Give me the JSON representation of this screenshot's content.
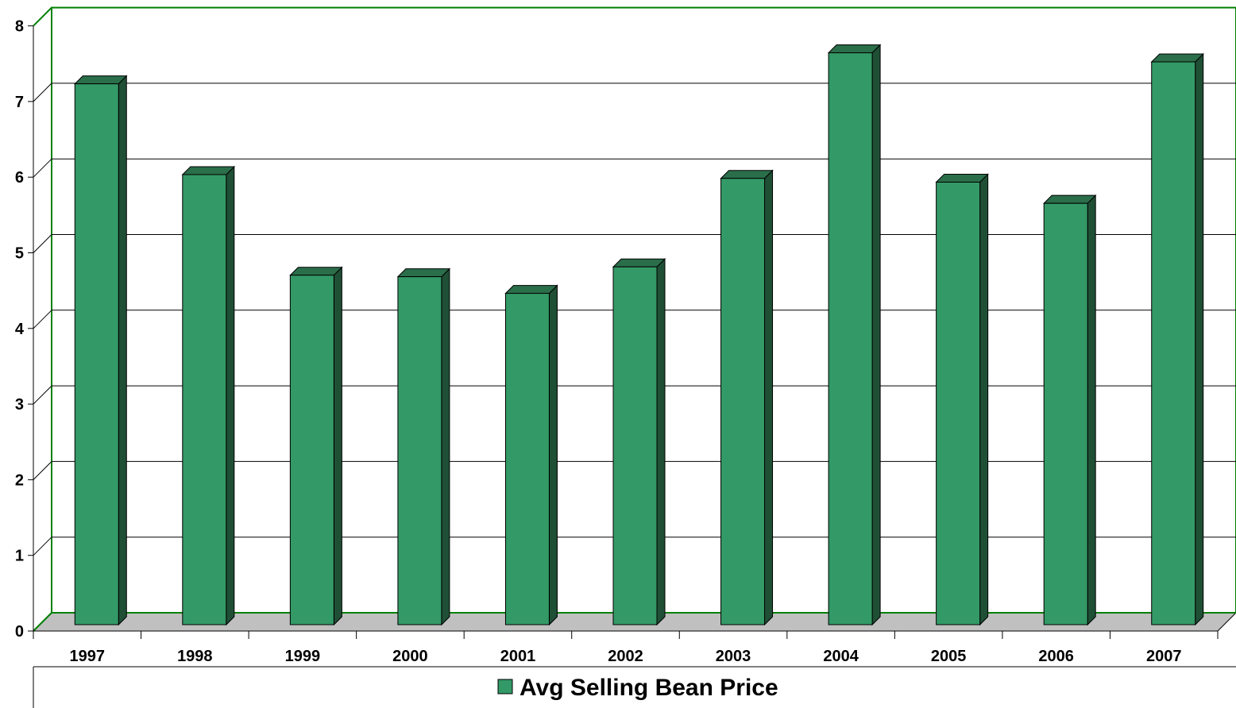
{
  "chart_data": {
    "type": "bar",
    "categories": [
      "1997",
      "1998",
      "1999",
      "2000",
      "2001",
      "2002",
      "2003",
      "2004",
      "2005",
      "2006",
      "2007"
    ],
    "series": [
      {
        "name": "Avg Selling Bean Price",
        "values": [
          7.15,
          5.95,
          4.62,
          4.6,
          4.38,
          4.73,
          5.9,
          7.56,
          5.85,
          5.57,
          7.44
        ]
      }
    ],
    "ylim": [
      0,
      8
    ],
    "yticks": [
      "0",
      "1",
      "2",
      "3",
      "4",
      "5",
      "6",
      "7",
      "8"
    ],
    "grid": true,
    "legend_position": "bottom",
    "colors": {
      "bar_front": "#339966",
      "bar_side": "#1f4f35",
      "bar_top": "#2a6e4a",
      "floor": "#c0c0c0",
      "wall_border": "#008000",
      "gridline": "#000000"
    }
  }
}
